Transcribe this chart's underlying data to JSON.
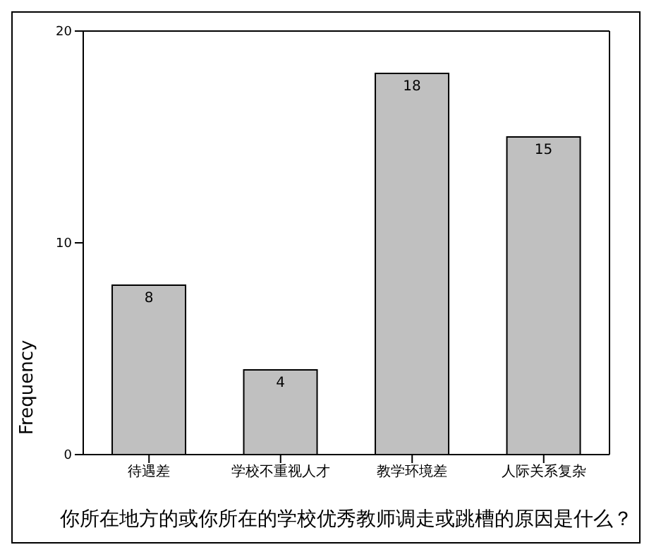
{
  "chart_data": {
    "type": "bar",
    "xlabel": "你所在地方的或你所在的学校优秀教师调走或跳槽的原因是什么？",
    "ylabel": "Frequency",
    "categories": [
      "待遇差",
      "学校不重视人才",
      "教学环境差",
      "人际关系复杂"
    ],
    "values": [
      8,
      4,
      18,
      15
    ],
    "color": "#c0c0c0",
    "ylim": [
      0,
      20
    ],
    "yticks": [
      0,
      10,
      20
    ],
    "grid": false,
    "data_labels": true
  }
}
